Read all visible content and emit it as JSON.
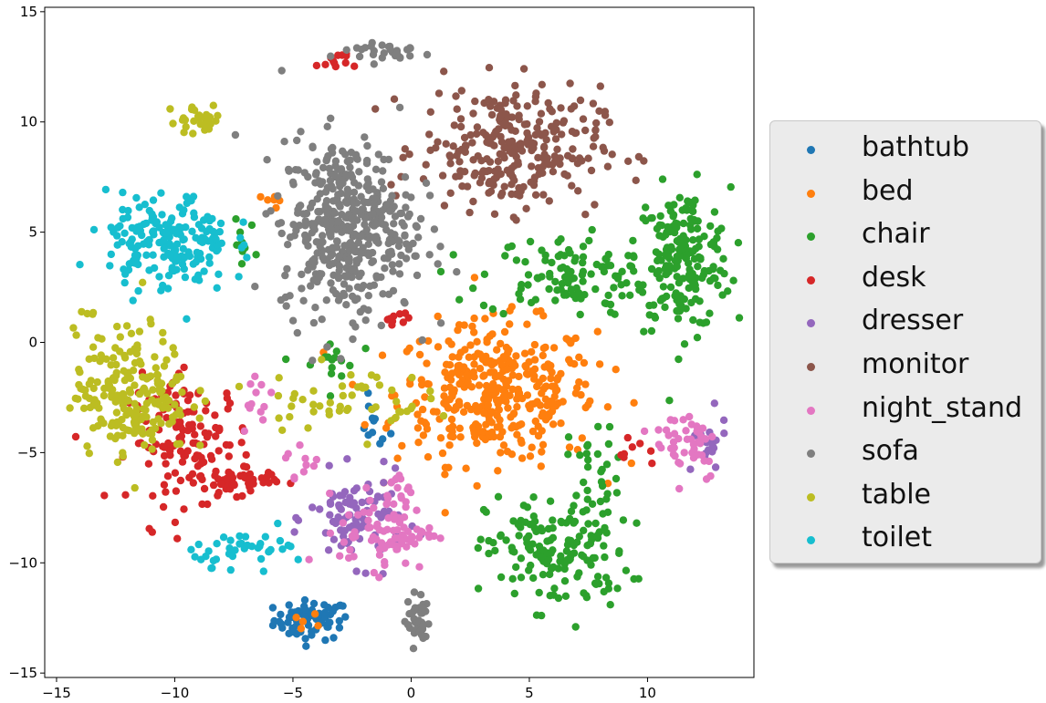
{
  "chart_data": {
    "type": "scatter",
    "title": "",
    "xlabel": "",
    "ylabel": "",
    "xlim": [
      -15.5,
      14.5
    ],
    "ylim": [
      -15.2,
      15.2
    ],
    "xticks": [
      -15,
      -10,
      -5,
      0,
      5,
      10
    ],
    "yticks": [
      15,
      10,
      5,
      0,
      -5,
      -10,
      -15
    ],
    "xtick_labels": [
      "−15",
      "−10",
      "−5",
      "0",
      "5",
      "10"
    ],
    "ytick_labels": [
      "15",
      "10",
      "5",
      "0",
      "−5",
      "−10",
      "−15"
    ],
    "grid": false,
    "legend_position": "right-outside",
    "series": [
      {
        "name": "bathtub",
        "color": "#1f77b4",
        "clusters": [
          {
            "cx": -4.2,
            "cy": -12.6,
            "sx": 0.8,
            "sy": 0.45,
            "n": 70
          },
          {
            "cx": -1.6,
            "cy": -3.8,
            "sx": 0.35,
            "sy": 0.6,
            "n": 12
          }
        ]
      },
      {
        "name": "bed",
        "color": "#ff7f0e",
        "clusters": [
          {
            "cx": 3.6,
            "cy": -2.3,
            "sx": 2.1,
            "sy": 1.6,
            "n": 380
          },
          {
            "cx": -5.8,
            "cy": 6.4,
            "sx": 0.2,
            "sy": 0.2,
            "n": 6
          },
          {
            "cx": -4.4,
            "cy": -12.7,
            "sx": 0.3,
            "sy": 0.2,
            "n": 5
          }
        ]
      },
      {
        "name": "chair",
        "color": "#2ca02c",
        "clusters": [
          {
            "cx": 11.5,
            "cy": 3.8,
            "sx": 1.0,
            "sy": 1.6,
            "n": 200
          },
          {
            "cx": 6.5,
            "cy": 3.0,
            "sx": 1.8,
            "sy": 0.9,
            "n": 110
          },
          {
            "cx": 6.2,
            "cy": -9.5,
            "sx": 1.5,
            "sy": 1.3,
            "n": 160
          },
          {
            "cx": 7.8,
            "cy": -5.5,
            "sx": 0.6,
            "sy": 1.0,
            "n": 25
          },
          {
            "cx": -7.2,
            "cy": 4.5,
            "sx": 0.3,
            "sy": 0.5,
            "n": 10
          },
          {
            "cx": -3.5,
            "cy": -1.0,
            "sx": 0.6,
            "sy": 0.6,
            "n": 15
          }
        ]
      },
      {
        "name": "desk",
        "color": "#d62728",
        "clusters": [
          {
            "cx": -9.3,
            "cy": -4.5,
            "sx": 1.3,
            "sy": 1.4,
            "n": 140
          },
          {
            "cx": -7.3,
            "cy": -6.3,
            "sx": 0.8,
            "sy": 0.3,
            "n": 40
          },
          {
            "cx": -3.2,
            "cy": 12.8,
            "sx": 0.4,
            "sy": 0.2,
            "n": 12
          },
          {
            "cx": -0.7,
            "cy": 1.0,
            "sx": 0.3,
            "sy": 0.3,
            "n": 10
          },
          {
            "cx": 9.6,
            "cy": -5.0,
            "sx": 0.4,
            "sy": 0.3,
            "n": 8
          }
        ]
      },
      {
        "name": "dresser",
        "color": "#9467bd",
        "clusters": [
          {
            "cx": -2.3,
            "cy": -8.0,
            "sx": 1.0,
            "sy": 1.0,
            "n": 90
          },
          {
            "cx": 12.4,
            "cy": -4.8,
            "sx": 0.5,
            "sy": 0.7,
            "n": 20
          }
        ]
      },
      {
        "name": "monitor",
        "color": "#8c564b",
        "clusters": [
          {
            "cx": 4.2,
            "cy": 8.8,
            "sx": 1.9,
            "sy": 1.4,
            "n": 280
          }
        ]
      },
      {
        "name": "night_stand",
        "color": "#e377c2",
        "clusters": [
          {
            "cx": -1.0,
            "cy": -8.5,
            "sx": 1.0,
            "sy": 0.9,
            "n": 90
          },
          {
            "cx": 11.7,
            "cy": -4.5,
            "sx": 0.7,
            "sy": 0.9,
            "n": 45
          },
          {
            "cx": -6.6,
            "cy": -2.5,
            "sx": 0.4,
            "sy": 0.9,
            "n": 12
          },
          {
            "cx": -4.5,
            "cy": -5.5,
            "sx": 0.4,
            "sy": 0.5,
            "n": 10
          },
          {
            "cx": -0.5,
            "cy": -6.3,
            "sx": 0.3,
            "sy": 0.3,
            "n": 10
          }
        ]
      },
      {
        "name": "sofa",
        "color": "#7f7f7f",
        "clusters": [
          {
            "cx": -2.7,
            "cy": 5.2,
            "sx": 1.4,
            "sy": 2.0,
            "n": 450
          },
          {
            "cx": -1.2,
            "cy": 13.2,
            "sx": 1.1,
            "sy": 0.25,
            "n": 30
          },
          {
            "cx": 0.3,
            "cy": -12.6,
            "sx": 0.25,
            "sy": 0.6,
            "n": 40
          }
        ]
      },
      {
        "name": "table",
        "color": "#bcbd22",
        "clusters": [
          {
            "cx": -11.8,
            "cy": -2.3,
            "sx": 1.2,
            "sy": 1.4,
            "n": 210
          },
          {
            "cx": -9.0,
            "cy": 10.1,
            "sx": 0.6,
            "sy": 0.35,
            "n": 30
          },
          {
            "cx": -3.0,
            "cy": -2.5,
            "sx": 1.8,
            "sy": 0.7,
            "n": 50
          },
          {
            "cx": -13.5,
            "cy": 1.3,
            "sx": 0.15,
            "sy": 0.1,
            "n": 4
          }
        ]
      },
      {
        "name": "toilet",
        "color": "#17becf",
        "clusters": [
          {
            "cx": -10.3,
            "cy": 4.5,
            "sx": 1.3,
            "sy": 1.1,
            "n": 190
          },
          {
            "cx": -6.7,
            "cy": -9.3,
            "sx": 1.3,
            "sy": 0.4,
            "n": 40
          }
        ]
      }
    ]
  }
}
